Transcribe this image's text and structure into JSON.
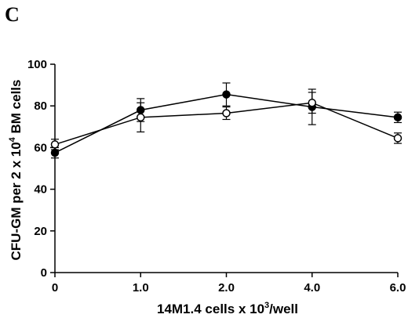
{
  "panel_label": "C",
  "chart_data": {
    "type": "line",
    "xlabel": {
      "prefix": "14M1.4 cells x 10",
      "sup": "3",
      "suffix": "/well"
    },
    "ylabel": {
      "prefix": "CFU-GM per 2 x 10",
      "sup": "4",
      "suffix": " BM cells"
    },
    "x_ticks": [
      "0",
      "1.0",
      "2.0",
      "4.0",
      "6.0"
    ],
    "y_ticks": [
      "0",
      "20",
      "40",
      "60",
      "80",
      "100"
    ],
    "ylim": [
      0,
      100
    ],
    "grid": false,
    "series": [
      {
        "marker": "filled-circle",
        "color": "#000000",
        "values": [
          57.5,
          78,
          85.5,
          79.5,
          74.5
        ],
        "errors": [
          2.5,
          5.5,
          5.5,
          8.5,
          2.5
        ]
      },
      {
        "marker": "open-circle",
        "color": "#000000",
        "values": [
          61.5,
          74.5,
          76.5,
          81.5,
          64.5
        ],
        "errors": [
          2.5,
          7,
          3,
          5,
          2.5
        ]
      }
    ]
  }
}
